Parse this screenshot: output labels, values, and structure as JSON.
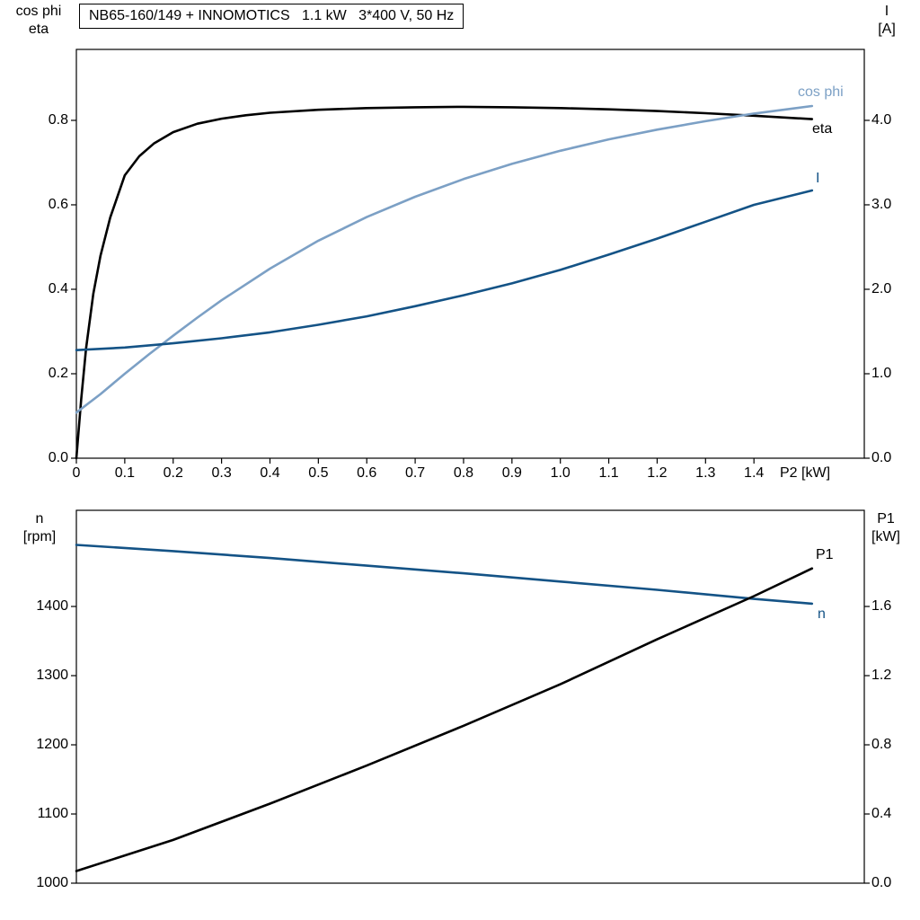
{
  "title_box": "NB65-160/149 + INNOMOTICS   1.1 kW   3*400 V, 50 Hz",
  "colors": {
    "curve_black": "#000000",
    "light_blue": "#7ca0c5",
    "dark_blue": "#145386",
    "frame": "#000000"
  },
  "chart_data": [
    {
      "type": "line",
      "position": "top",
      "xlabel": "P2 [kW]",
      "xlim": [
        0,
        1.628
      ],
      "x_tick_labels": [
        "0",
        "0.1",
        "0.2",
        "0.3",
        "0.4",
        "0.5",
        "0.6",
        "0.7",
        "0.8",
        "0.9",
        "1.0",
        "1.1",
        "1.2",
        "1.3",
        "1.4"
      ],
      "left_axis": {
        "name_lines": [
          "cos phi",
          "eta"
        ],
        "tick_labels": [
          "0.0",
          "0.2",
          "0.4",
          "0.6",
          "0.8"
        ],
        "lim": [
          0,
          0.968
        ]
      },
      "right_axis": {
        "name_lines": [
          "I",
          "[A]"
        ],
        "tick_labels": [
          "0.0",
          "1.0",
          "2.0",
          "3.0",
          "4.0"
        ],
        "lim": [
          0,
          4.84
        ]
      },
      "series": [
        {
          "name": "eta",
          "axis": "left",
          "color": "curve_black",
          "x": [
            0,
            0.01,
            0.02,
            0.035,
            0.05,
            0.07,
            0.1,
            0.13,
            0.16,
            0.2,
            0.25,
            0.3,
            0.35,
            0.4,
            0.5,
            0.6,
            0.7,
            0.8,
            0.9,
            1.0,
            1.1,
            1.2,
            1.3,
            1.4,
            1.52
          ],
          "y": [
            0,
            0.14,
            0.26,
            0.39,
            0.48,
            0.57,
            0.67,
            0.715,
            0.745,
            0.772,
            0.792,
            0.804,
            0.812,
            0.818,
            0.825,
            0.829,
            0.831,
            0.832,
            0.831,
            0.829,
            0.826,
            0.822,
            0.817,
            0.811,
            0.803
          ]
        },
        {
          "name": "cos phi",
          "axis": "left",
          "color": "light_blue",
          "x": [
            0,
            0.05,
            0.1,
            0.15,
            0.2,
            0.25,
            0.3,
            0.4,
            0.5,
            0.6,
            0.7,
            0.8,
            0.9,
            1.0,
            1.1,
            1.2,
            1.3,
            1.4,
            1.52
          ],
          "y": [
            0.108,
            0.152,
            0.2,
            0.246,
            0.29,
            0.333,
            0.374,
            0.449,
            0.515,
            0.571,
            0.619,
            0.661,
            0.697,
            0.728,
            0.755,
            0.778,
            0.798,
            0.816,
            0.834
          ]
        },
        {
          "name": "I",
          "axis": "right",
          "color": "dark_blue",
          "x": [
            0,
            0.1,
            0.2,
            0.3,
            0.4,
            0.5,
            0.6,
            0.7,
            0.8,
            0.9,
            1.0,
            1.1,
            1.2,
            1.3,
            1.4,
            1.52
          ],
          "y": [
            1.28,
            1.31,
            1.36,
            1.42,
            1.49,
            1.58,
            1.68,
            1.8,
            1.93,
            2.07,
            2.23,
            2.41,
            2.6,
            2.8,
            3.0,
            3.17
          ]
        }
      ]
    },
    {
      "type": "line",
      "position": "bottom",
      "xlabel": "",
      "xlim": [
        0,
        1.628
      ],
      "x_tick_labels": [],
      "left_axis": {
        "name_lines": [
          "n",
          "[rpm]"
        ],
        "tick_labels": [
          "1000",
          "1100",
          "1200",
          "1300",
          "1400"
        ],
        "lim": [
          1000,
          1539
        ]
      },
      "right_axis": {
        "name_lines": [
          "P1",
          "[kW]"
        ],
        "tick_labels": [
          "0.0",
          "0.4",
          "0.8",
          "1.2",
          "1.6"
        ],
        "lim": [
          0,
          2.156
        ]
      },
      "series": [
        {
          "name": "n",
          "axis": "left",
          "color": "dark_blue",
          "x": [
            0,
            0.2,
            0.4,
            0.6,
            0.8,
            1.0,
            1.2,
            1.4,
            1.52
          ],
          "y": [
            1489,
            1480,
            1470,
            1459,
            1448,
            1436,
            1424,
            1411,
            1404
          ]
        },
        {
          "name": "P1",
          "axis": "right",
          "color": "curve_black",
          "x": [
            0,
            0.2,
            0.4,
            0.6,
            0.8,
            1.0,
            1.2,
            1.4,
            1.52
          ],
          "y": [
            0.07,
            0.25,
            0.46,
            0.68,
            0.91,
            1.15,
            1.41,
            1.66,
            1.82
          ]
        }
      ]
    }
  ]
}
